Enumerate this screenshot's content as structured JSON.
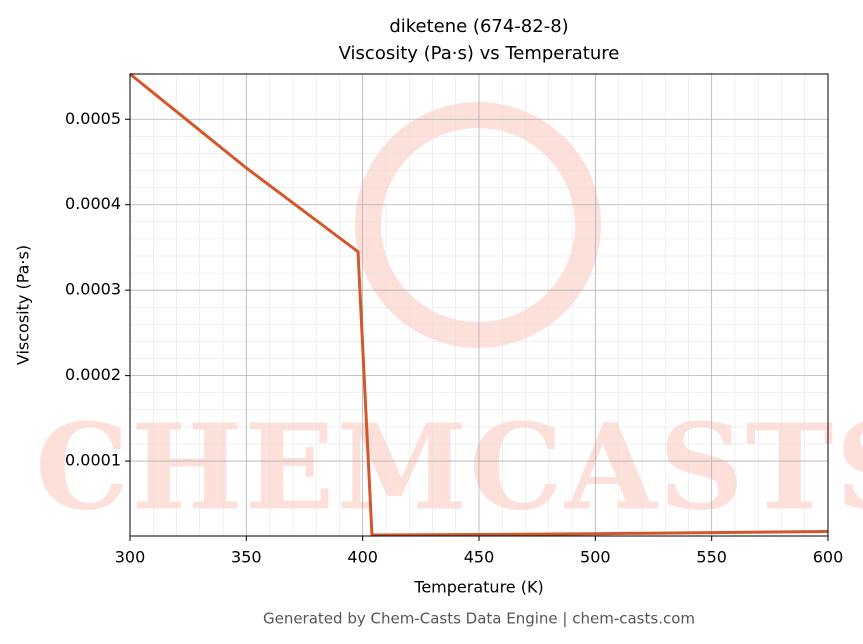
{
  "chart_data": {
    "type": "line",
    "title": "diketene (674-82-8)",
    "subtitle": "Viscosity (Pa·s) vs Temperature",
    "x_label": "Temperature (K)",
    "y_label": "Viscosity (Pa·s)",
    "watermark": "CHEMCASTS",
    "footer": "Generated by Chem-Casts Data Engine | chem-casts.com",
    "x": [
      300,
      350,
      398,
      404,
      450,
      500,
      550,
      600
    ],
    "series": [
      {
        "name": "Viscosity",
        "color": "#d4572a",
        "values": [
          0.000553,
          0.000443,
          0.000345,
          1.34e-05,
          1.4e-05,
          1.5e-05,
          1.63e-05,
          1.75e-05
        ]
      }
    ],
    "xlim": [
      300,
      600
    ],
    "xticks": [
      300,
      350,
      400,
      450,
      500,
      550,
      600
    ],
    "ylim": [
      1.23e-05,
      0.000553
    ],
    "yticks": [
      0.0001,
      0.0002,
      0.0003,
      0.0004,
      0.0005
    ],
    "grid": true
  }
}
